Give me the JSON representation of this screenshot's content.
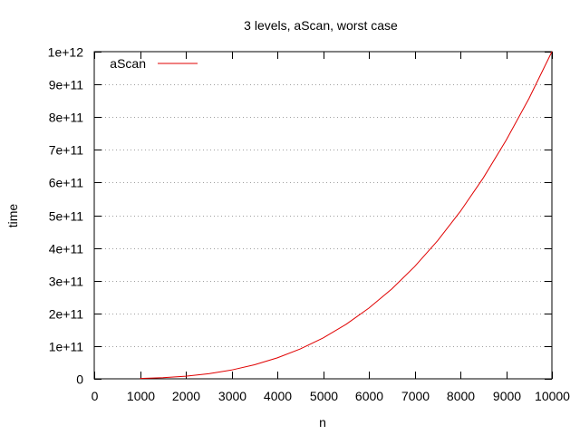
{
  "chart_data": {
    "type": "line",
    "title": "3 levels, aScan, worst case",
    "xlabel": "n",
    "ylabel": "time",
    "xlim": [
      0,
      10000
    ],
    "ylim": [
      0,
      1000000000000
    ],
    "x_ticks": [
      0,
      1000,
      2000,
      3000,
      4000,
      5000,
      6000,
      7000,
      8000,
      9000,
      10000
    ],
    "x_tick_labels": [
      "0",
      "1000",
      "2000",
      "3000",
      "4000",
      "5000",
      "6000",
      "7000",
      "8000",
      "9000",
      "10000"
    ],
    "y_ticks": [
      0,
      100000000000,
      200000000000,
      300000000000,
      400000000000,
      500000000000,
      600000000000,
      700000000000,
      800000000000,
      900000000000,
      1000000000000
    ],
    "y_tick_labels": [
      "0",
      "1e+11",
      "2e+11",
      "3e+11",
      "4e+11",
      "5e+11",
      "6e+11",
      "7e+11",
      "8e+11",
      "9e+11",
      "1e+12"
    ],
    "grid": "horizontal dotted",
    "legend_placement": "top-left",
    "series": [
      {
        "name": "aScan",
        "color": "#e00000",
        "x": [
          1000,
          1500,
          2000,
          2500,
          3000,
          3500,
          4000,
          4500,
          5000,
          5500,
          6000,
          6500,
          7000,
          7500,
          8000,
          8500,
          9000,
          9500,
          10000
        ],
        "y": [
          1000000000,
          3400000000,
          8000000000,
          15600000000,
          27000000000,
          42900000000,
          64000000000,
          91100000000,
          125000000000,
          166400000000,
          216000000000,
          274600000000,
          343000000000,
          421900000000,
          512000000000,
          614100000000,
          729000000000,
          857400000000,
          1000000000000
        ]
      }
    ]
  }
}
